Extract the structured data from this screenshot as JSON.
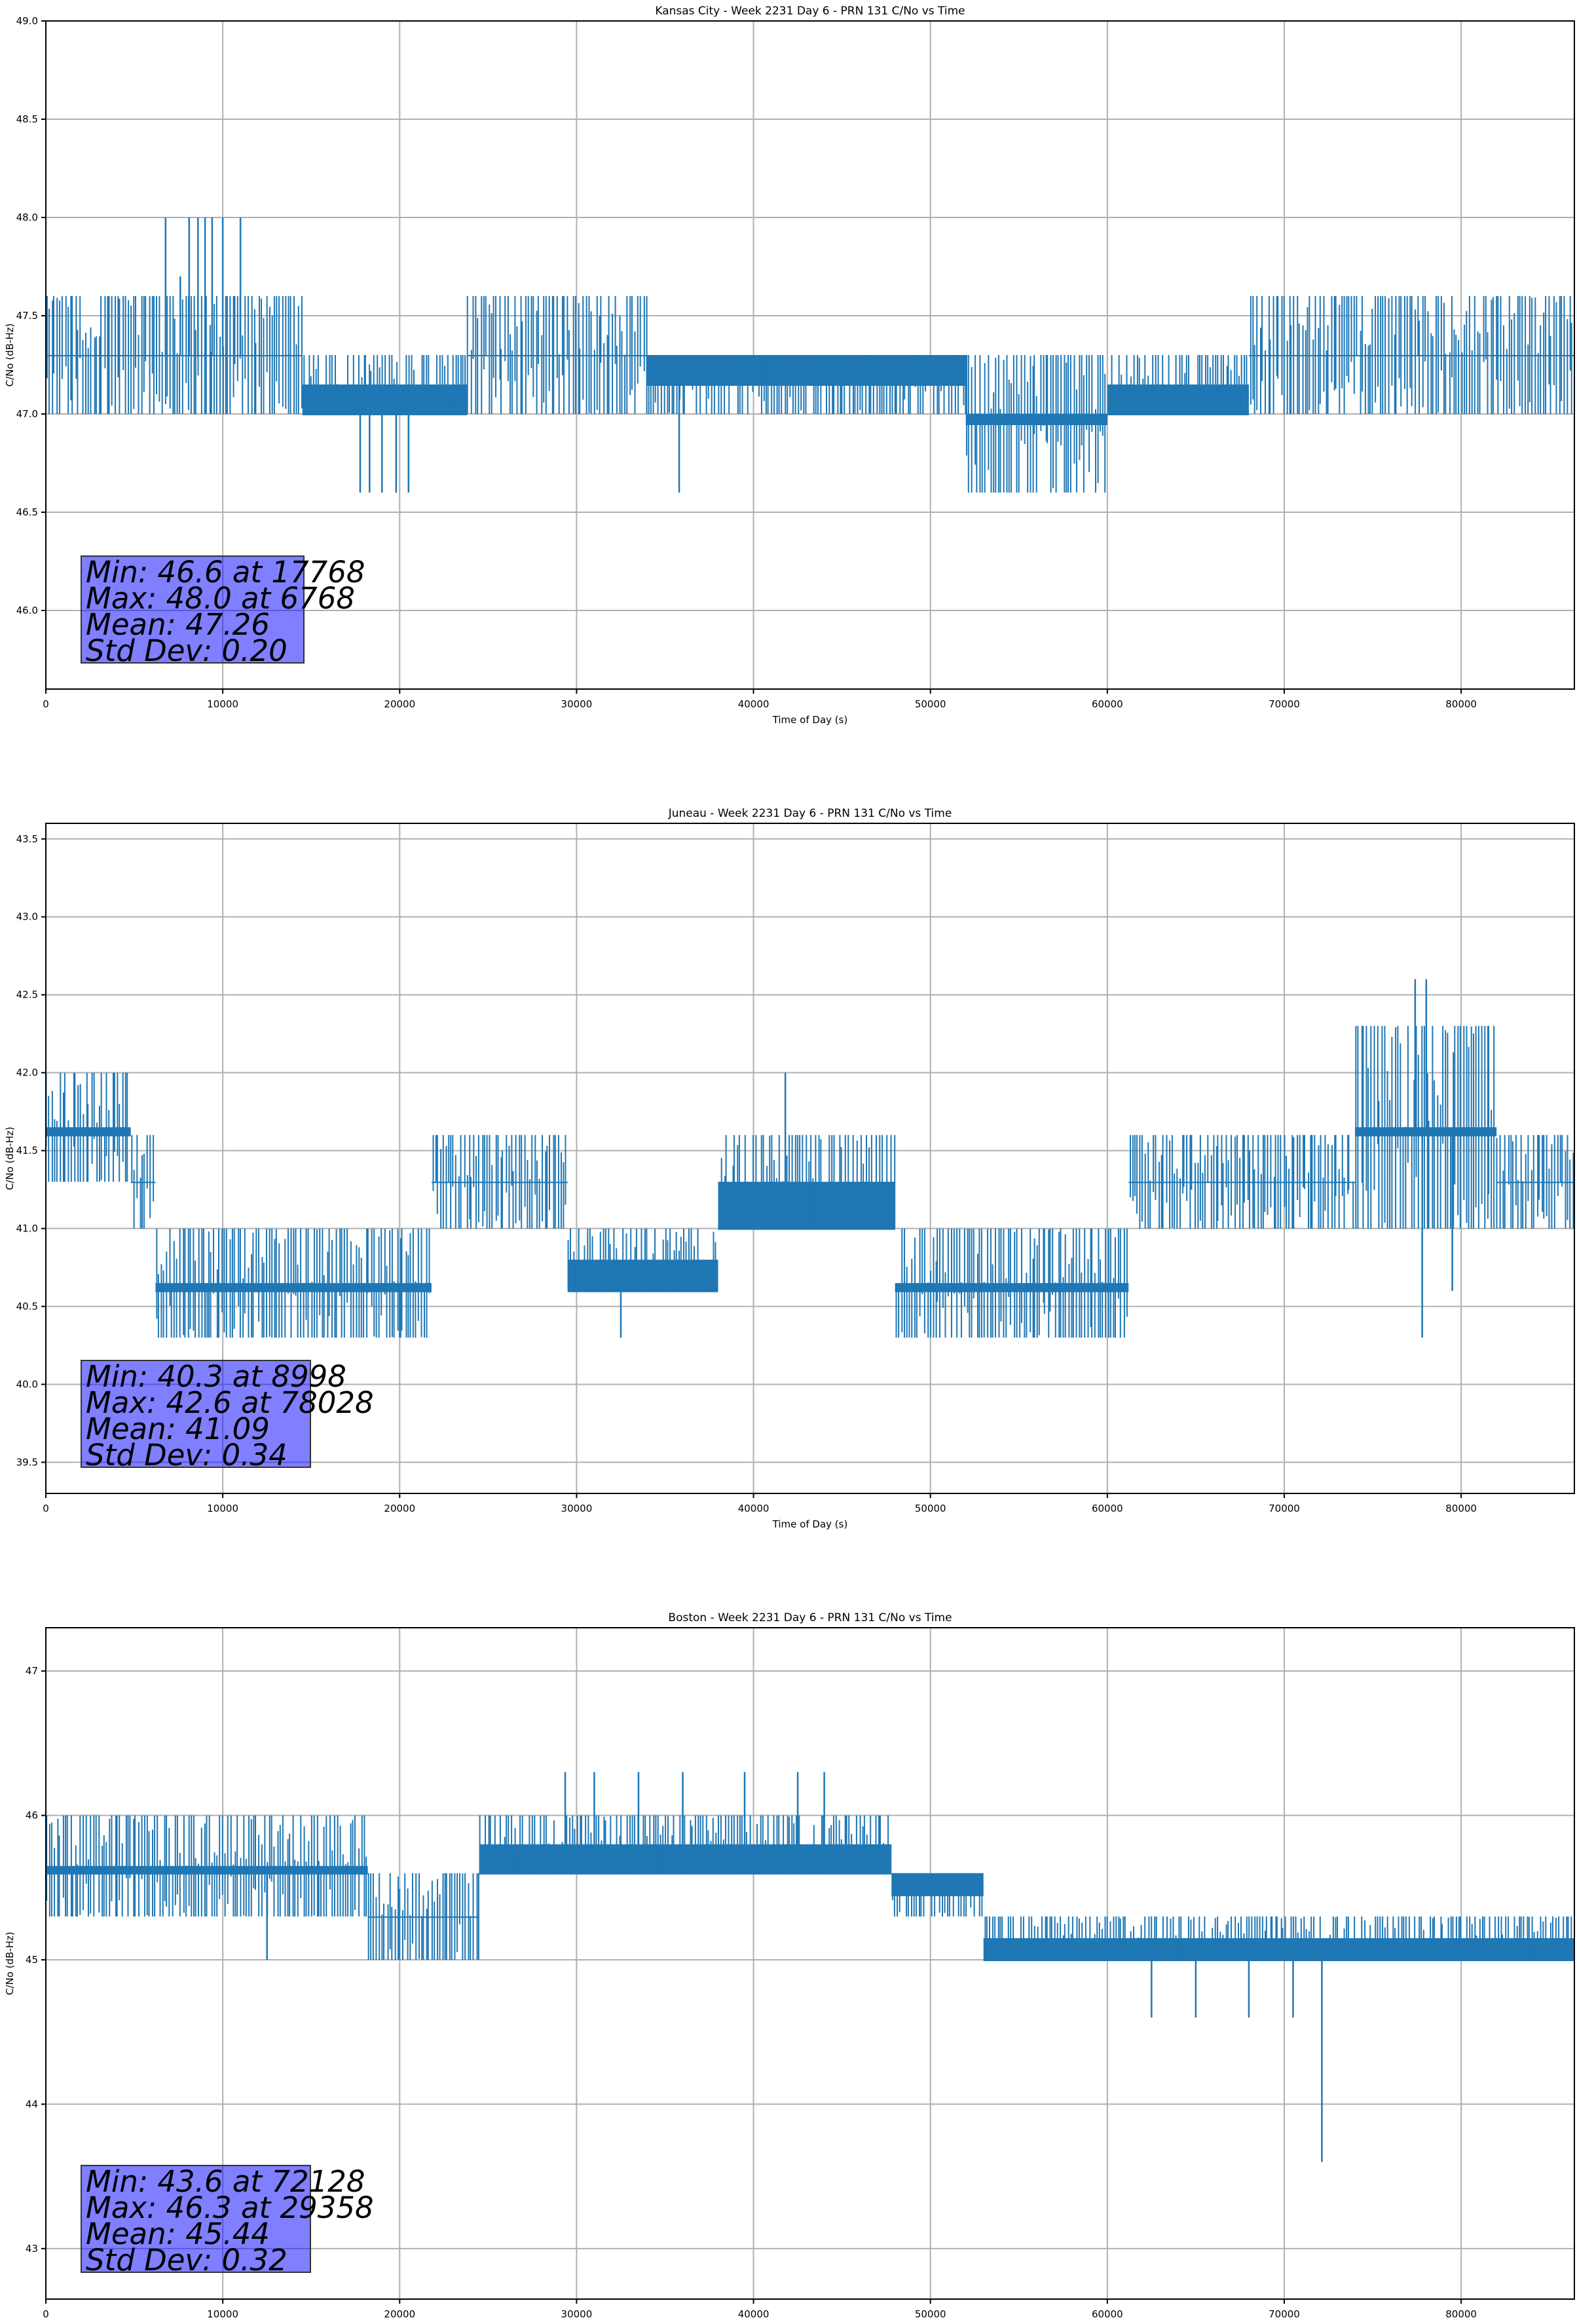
{
  "chart_data": [
    {
      "type": "line",
      "title": "Kansas City - Week 2231 Day 6 - PRN 131 C/No vs Time",
      "xlabel": "Time of Day (s)",
      "ylabel": "C/No (dB-Hz)",
      "xlim": [
        0,
        86400
      ],
      "ylim": [
        45.6,
        49.0
      ],
      "xticks": [
        "0",
        "10000",
        "20000",
        "30000",
        "40000",
        "50000",
        "60000",
        "70000",
        "80000"
      ],
      "yticks": [
        "46.0",
        "46.5",
        "47.0",
        "47.5",
        "48.0",
        "48.5",
        "49.0"
      ],
      "grid": true,
      "line_color": "#1f77b4",
      "stats": [
        "Min: 46.6 at 17768",
        "Max: 48.0 at 6768",
        "Mean: 47.26",
        "Std Dev: 0.20"
      ],
      "series": [
        {
          "segments": [
            {
              "x": [
                0,
                2000,
                3800,
                5500,
                7000,
                9000,
                11500,
                13000,
                14500
              ],
              "base": 47.3,
              "range": [
                47.0,
                47.6
              ]
            },
            {
              "x": [
                14500,
                16000,
                18000,
                20000,
                22000,
                23800
              ],
              "base": 47.0,
              "range": [
                47.0,
                47.3
              ]
            },
            {
              "x": [
                23800,
                26000,
                28000,
                30000,
                32000,
                34000
              ],
              "base": 47.3,
              "range": [
                47.0,
                47.6
              ]
            },
            {
              "x": [
                34000,
                36000,
                38000,
                40000,
                42000,
                44000,
                46000,
                48000,
                50000,
                52000
              ],
              "base": 47.3,
              "range": [
                47.0,
                47.3
              ]
            },
            {
              "x": [
                52000,
                54000,
                56000,
                58000,
                60000
              ],
              "base": 47.0,
              "range": [
                46.6,
                47.3
              ]
            },
            {
              "x": [
                60000,
                62000,
                64000,
                66000,
                68000
              ],
              "base": 47.0,
              "range": [
                47.0,
                47.3
              ]
            },
            {
              "x": [
                68000,
                70000,
                72000,
                74000,
                76000,
                78000,
                80000,
                82000,
                84000,
                86400
              ],
              "base": 47.3,
              "range": [
                47.0,
                47.6
              ]
            }
          ],
          "spikes": [
            {
              "x": 6768,
              "y": 48.0
            },
            {
              "x": 7600,
              "y": 47.7
            },
            {
              "x": 8100,
              "y": 48.0
            },
            {
              "x": 8600,
              "y": 48.0
            },
            {
              "x": 9000,
              "y": 48.0
            },
            {
              "x": 9400,
              "y": 48.0
            },
            {
              "x": 10000,
              "y": 48.0
            },
            {
              "x": 11000,
              "y": 48.0
            },
            {
              "x": 17768,
              "y": 46.6
            },
            {
              "x": 18300,
              "y": 46.6
            },
            {
              "x": 19000,
              "y": 46.6
            },
            {
              "x": 19800,
              "y": 46.6
            },
            {
              "x": 20500,
              "y": 46.6
            },
            {
              "x": 35800,
              "y": 46.6
            }
          ]
        }
      ]
    },
    {
      "type": "line",
      "title": "Juneau - Week 2231 Day 6 - PRN 131 C/No vs Time",
      "xlabel": "Time of Day (s)",
      "ylabel": "C/No (dB-Hz)",
      "xlim": [
        0,
        86400
      ],
      "ylim": [
        39.3,
        43.6
      ],
      "xticks": [
        "0",
        "10000",
        "20000",
        "30000",
        "40000",
        "50000",
        "60000",
        "70000",
        "80000"
      ],
      "yticks": [
        "39.5",
        "40.0",
        "40.5",
        "41.0",
        "41.5",
        "42.0",
        "42.5",
        "43.0",
        "43.5"
      ],
      "grid": true,
      "line_color": "#1f77b4",
      "stats": [
        "Min: 40.3 at 8998",
        "Max: 42.6 at 78028",
        "Mean: 41.09",
        "Std Dev: 0.34"
      ],
      "series": [
        {
          "segments": [
            {
              "x": [
                0,
                1500,
                3000,
                4800
              ],
              "base": 41.6,
              "range": [
                41.3,
                42.0
              ]
            },
            {
              "x": [
                4800,
                6200
              ],
              "base": 41.3,
              "range": [
                41.0,
                41.6
              ]
            },
            {
              "x": [
                6200,
                8000,
                10000,
                12000,
                14000,
                16000,
                18000,
                20000,
                21800
              ],
              "base": 40.6,
              "range": [
                40.3,
                41.0
              ]
            },
            {
              "x": [
                21800,
                24000,
                26000,
                28000,
                29500
              ],
              "base": 41.3,
              "range": [
                41.0,
                41.6
              ]
            },
            {
              "x": [
                29500,
                32000,
                34000,
                36000,
                38000
              ],
              "base": 40.6,
              "range": [
                40.6,
                41.0
              ]
            },
            {
              "x": [
                38000,
                40000,
                42000,
                44000,
                46000,
                48000
              ],
              "base": 41.0,
              "range": [
                41.0,
                41.6
              ]
            },
            {
              "x": [
                48000,
                50000,
                52000,
                54000,
                56000,
                58000,
                61200
              ],
              "base": 40.6,
              "range": [
                40.3,
                41.0
              ]
            },
            {
              "x": [
                61200,
                64000,
                66000,
                68000,
                70000,
                72000,
                74000
              ],
              "base": 41.3,
              "range": [
                41.0,
                41.6
              ]
            },
            {
              "x": [
                74000,
                76000,
                78000,
                80000,
                82000
              ],
              "base": 41.6,
              "range": [
                41.0,
                42.3
              ]
            },
            {
              "x": [
                82000,
                84000,
                86400
              ],
              "base": 41.3,
              "range": [
                41.0,
                41.6
              ]
            }
          ],
          "spikes": [
            {
              "x": 8998,
              "y": 40.3
            },
            {
              "x": 20000,
              "y": 40.3
            },
            {
              "x": 32500,
              "y": 40.3
            },
            {
              "x": 41800,
              "y": 42.0
            },
            {
              "x": 77400,
              "y": 42.6
            },
            {
              "x": 78028,
              "y": 42.6
            },
            {
              "x": 77800,
              "y": 40.3
            },
            {
              "x": 79500,
              "y": 40.6
            }
          ]
        }
      ]
    },
    {
      "type": "line",
      "title": "Boston - Week 2231 Day 6 - PRN 131 C/No vs Time",
      "xlabel": "Time of Day (s)",
      "ylabel": "C/No (dB-Hz)",
      "xlim": [
        0,
        86400
      ],
      "ylim": [
        42.65,
        47.3
      ],
      "xticks": [
        "0",
        "10000",
        "20000",
        "30000",
        "40000",
        "50000",
        "60000",
        "70000",
        "80000"
      ],
      "yticks": [
        "43",
        "44",
        "45",
        "46",
        "47"
      ],
      "grid": true,
      "line_color": "#1f77b4",
      "stats": [
        "Min: 43.6 at 72128",
        "Max: 46.3 at 29358",
        "Mean: 45.44",
        "Std Dev: 0.32"
      ],
      "series": [
        {
          "segments": [
            {
              "x": [
                0,
                2000,
                4000,
                6000,
                8000,
                10000,
                12000,
                14000,
                16000,
                18200
              ],
              "base": 45.6,
              "range": [
                45.3,
                46.0
              ]
            },
            {
              "x": [
                18200,
                20000,
                22000,
                24500
              ],
              "base": 45.3,
              "range": [
                45.0,
                45.6
              ]
            },
            {
              "x": [
                24500,
                27000,
                30000,
                33000,
                36000,
                39000,
                42000,
                45000,
                47800
              ],
              "base": 45.6,
              "range": [
                45.6,
                46.0
              ]
            },
            {
              "x": [
                47800,
                50000,
                53000
              ],
              "base": 45.6,
              "range": [
                45.3,
                45.6
              ]
            },
            {
              "x": [
                53000,
                56000,
                59000,
                62000,
                65000,
                68000,
                71000,
                74000,
                77000,
                80000,
                83000,
                86400
              ],
              "base": 45.0,
              "range": [
                45.0,
                45.3
              ]
            }
          ],
          "spikes": [
            {
              "x": 12500,
              "y": 45.0
            },
            {
              "x": 29358,
              "y": 46.3
            },
            {
              "x": 31000,
              "y": 46.3
            },
            {
              "x": 33500,
              "y": 46.3
            },
            {
              "x": 36000,
              "y": 46.3
            },
            {
              "x": 39500,
              "y": 46.3
            },
            {
              "x": 42500,
              "y": 46.3
            },
            {
              "x": 44000,
              "y": 46.3
            },
            {
              "x": 62500,
              "y": 44.6
            },
            {
              "x": 65000,
              "y": 44.6
            },
            {
              "x": 68000,
              "y": 44.6
            },
            {
              "x": 70500,
              "y": 44.6
            },
            {
              "x": 72128,
              "y": 43.6
            }
          ]
        }
      ]
    }
  ]
}
